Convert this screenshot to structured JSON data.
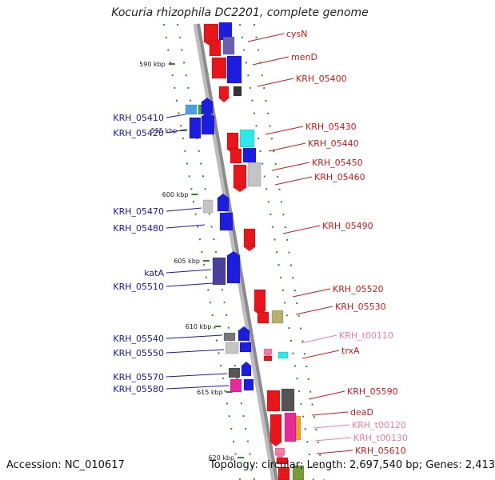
{
  "title": "Kocuria rhizophila DC2201, complete genome",
  "footer": {
    "accession": "Accession: NC_010617",
    "topology": "Topology: circular; Length: 2,697,540 bp; Genes: 2,413"
  },
  "colors": {
    "forward_label": "#1a1aa8",
    "reverse_label": "#d0181c",
    "rna_label": "#f07aa8",
    "tick": "#2a8a2a",
    "backbone": "#8c8c8c"
  },
  "scale": {
    "ticks": [
      {
        "label": "590 kbp"
      },
      {
        "label": "595 kbp"
      },
      {
        "label": "600 kbp"
      },
      {
        "label": "605 kbp"
      },
      {
        "label": "610 kbp"
      },
      {
        "label": "615 kbp"
      },
      {
        "label": "620 kbp"
      }
    ]
  },
  "labels_left": [
    {
      "text": "KRH_05410",
      "kind": "forward"
    },
    {
      "text": "KRH_05420",
      "kind": "forward"
    },
    {
      "text": "KRH_05470",
      "kind": "forward"
    },
    {
      "text": "KRH_05480",
      "kind": "forward"
    },
    {
      "text": "katA",
      "kind": "forward"
    },
    {
      "text": "KRH_05510",
      "kind": "forward"
    },
    {
      "text": "KRH_05540",
      "kind": "forward"
    },
    {
      "text": "KRH_05550",
      "kind": "forward"
    },
    {
      "text": "KRH_05570",
      "kind": "forward"
    },
    {
      "text": "KRH_05580",
      "kind": "forward"
    }
  ],
  "labels_right": [
    {
      "text": "cysN",
      "kind": "reverse"
    },
    {
      "text": "menD",
      "kind": "reverse"
    },
    {
      "text": "KRH_05400",
      "kind": "reverse"
    },
    {
      "text": "KRH_05430",
      "kind": "reverse"
    },
    {
      "text": "KRH_05440",
      "kind": "reverse"
    },
    {
      "text": "KRH_05450",
      "kind": "reverse"
    },
    {
      "text": "KRH_05460",
      "kind": "reverse"
    },
    {
      "text": "KRH_05490",
      "kind": "reverse"
    },
    {
      "text": "KRH_05520",
      "kind": "reverse"
    },
    {
      "text": "KRH_05530",
      "kind": "reverse"
    },
    {
      "text": "KRH_t00110",
      "kind": "rna"
    },
    {
      "text": "trxA",
      "kind": "reverse"
    },
    {
      "text": "KRH_05590",
      "kind": "reverse"
    },
    {
      "text": "deaD",
      "kind": "reverse"
    },
    {
      "text": "KRH_t00120",
      "kind": "rna"
    },
    {
      "text": "KRH_t00130",
      "kind": "rna"
    },
    {
      "text": "KRH_05610",
      "kind": "reverse"
    }
  ]
}
